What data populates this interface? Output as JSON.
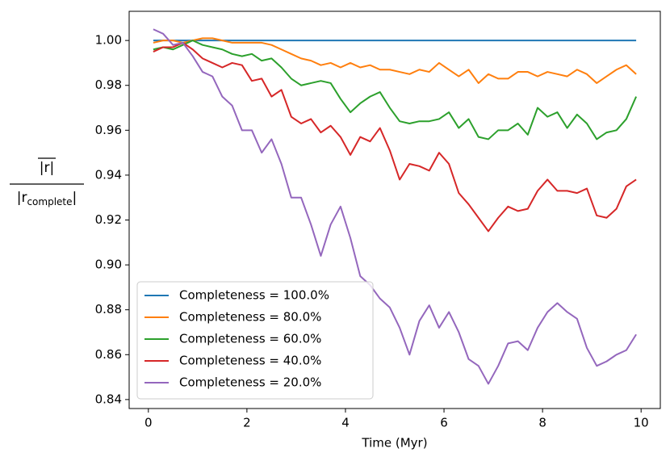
{
  "chart_data": {
    "type": "line",
    "xlabel": "Time (Myr)",
    "ylabel": {
      "numerator": "|r|",
      "denominator": [
        "|r",
        "complete",
        "|"
      ]
    },
    "x": [
      0.1,
      0.3,
      0.5,
      0.7,
      0.9,
      1.1,
      1.3,
      1.5,
      1.7,
      1.9,
      2.1,
      2.3,
      2.5,
      2.7,
      2.9,
      3.1,
      3.3,
      3.5,
      3.7,
      3.9,
      4.1,
      4.3,
      4.5,
      4.7,
      4.9,
      5.1,
      5.3,
      5.5,
      5.7,
      5.9,
      6.1,
      6.3,
      6.5,
      6.7,
      6.9,
      7.1,
      7.3,
      7.5,
      7.7,
      7.9,
      8.1,
      8.3,
      8.5,
      8.7,
      8.9,
      9.1,
      9.3,
      9.5,
      9.7,
      9.9
    ],
    "series": [
      {
        "name": "Completeness = 100.0%",
        "color": "#1f77b4",
        "values": [
          1,
          1,
          1,
          1,
          1,
          1,
          1,
          1,
          1,
          1,
          1,
          1,
          1,
          1,
          1,
          1,
          1,
          1,
          1,
          1,
          1,
          1,
          1,
          1,
          1,
          1,
          1,
          1,
          1,
          1,
          1,
          1,
          1,
          1,
          1,
          1,
          1,
          1,
          1,
          1,
          1,
          1,
          1,
          1,
          1,
          1,
          1,
          1,
          1,
          1
        ]
      },
      {
        "name": "Completeness = 80.0%",
        "color": "#ff7f0e",
        "values": [
          0.999,
          1.0,
          1.0,
          0.999,
          1.0,
          1.001,
          1.001,
          1.0,
          0.999,
          0.999,
          0.999,
          0.999,
          0.998,
          0.996,
          0.994,
          0.992,
          0.991,
          0.989,
          0.99,
          0.988,
          0.99,
          0.988,
          0.989,
          0.987,
          0.987,
          0.986,
          0.985,
          0.987,
          0.986,
          0.99,
          0.987,
          0.984,
          0.987,
          0.981,
          0.985,
          0.983,
          0.983,
          0.986,
          0.986,
          0.984,
          0.986,
          0.985,
          0.984,
          0.987,
          0.985,
          0.981,
          0.984,
          0.987,
          0.989,
          0.985
        ]
      },
      {
        "name": "Completeness = 60.0%",
        "color": "#2ca02c",
        "values": [
          0.996,
          0.997,
          0.996,
          0.998,
          1.0,
          0.998,
          0.997,
          0.996,
          0.994,
          0.993,
          0.994,
          0.991,
          0.992,
          0.988,
          0.983,
          0.98,
          0.981,
          0.982,
          0.981,
          0.974,
          0.968,
          0.972,
          0.975,
          0.977,
          0.97,
          0.964,
          0.963,
          0.964,
          0.964,
          0.965,
          0.968,
          0.961,
          0.965,
          0.957,
          0.956,
          0.96,
          0.96,
          0.963,
          0.958,
          0.97,
          0.966,
          0.968,
          0.961,
          0.967,
          0.963,
          0.956,
          0.959,
          0.96,
          0.965,
          0.975
        ]
      },
      {
        "name": "Completeness = 40.0%",
        "color": "#d62728",
        "values": [
          0.995,
          0.997,
          0.997,
          0.999,
          0.996,
          0.992,
          0.99,
          0.988,
          0.99,
          0.989,
          0.982,
          0.983,
          0.975,
          0.978,
          0.966,
          0.963,
          0.965,
          0.959,
          0.962,
          0.957,
          0.949,
          0.957,
          0.955,
          0.961,
          0.951,
          0.938,
          0.945,
          0.944,
          0.942,
          0.95,
          0.945,
          0.932,
          0.927,
          0.921,
          0.915,
          0.921,
          0.926,
          0.924,
          0.925,
          0.933,
          0.938,
          0.933,
          0.933,
          0.932,
          0.934,
          0.922,
          0.921,
          0.925,
          0.935,
          0.938
        ]
      },
      {
        "name": "Completeness = 20.0%",
        "color": "#9467bd",
        "values": [
          1.005,
          1.003,
          0.998,
          0.999,
          0.993,
          0.986,
          0.984,
          0.975,
          0.971,
          0.96,
          0.96,
          0.95,
          0.956,
          0.945,
          0.93,
          0.93,
          0.918,
          0.904,
          0.918,
          0.926,
          0.912,
          0.895,
          0.891,
          0.885,
          0.881,
          0.872,
          0.86,
          0.875,
          0.882,
          0.872,
          0.879,
          0.87,
          0.858,
          0.855,
          0.847,
          0.855,
          0.865,
          0.866,
          0.862,
          0.872,
          0.879,
          0.883,
          0.879,
          0.876,
          0.863,
          0.855,
          0.857,
          0.86,
          0.862,
          0.869
        ]
      }
    ],
    "xlim": [
      -0.39,
      10.39
    ],
    "xticks": [
      0,
      2,
      4,
      6,
      8,
      10
    ],
    "ylim": [
      0.836,
      1.013
    ],
    "yticks": [
      0.84,
      0.86,
      0.88,
      {
        "value": 0.9,
        "label": "0.90"
      },
      0.92,
      0.94,
      0.96,
      0.98,
      {
        "value": 1,
        "label": "1.00"
      }
    ],
    "legend": "lower left",
    "grid": false
  }
}
